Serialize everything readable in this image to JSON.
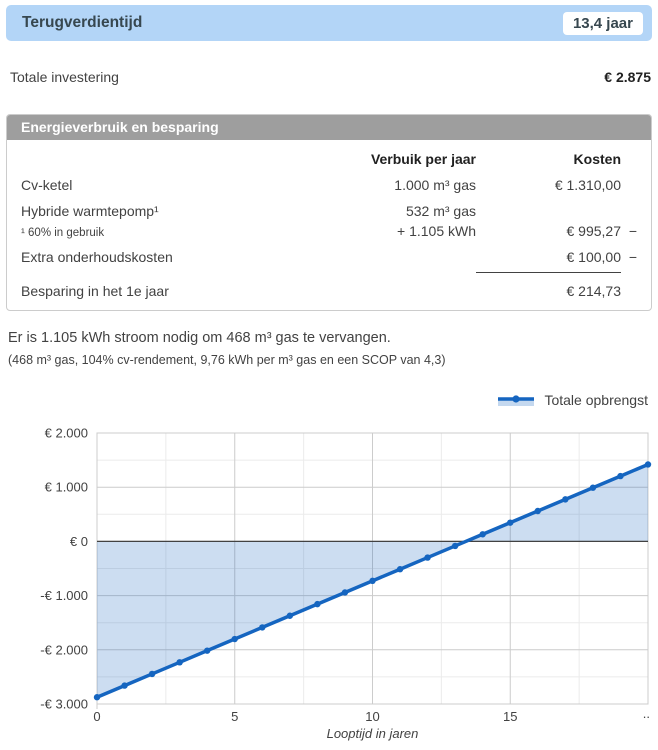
{
  "header": {
    "title": "Terugverdientijd",
    "badge": "13,4 jaar"
  },
  "investment": {
    "label": "Totale investering",
    "value": "€ 2.875"
  },
  "energy_table": {
    "title": "Energieverbruik en besparing",
    "col_usage": "Verbuik per jaar",
    "col_cost": "Kosten",
    "cv_ketel": {
      "label": "Cv-ketel",
      "usage": "1.000 m³ gas",
      "cost": "€ 1.310,00",
      "minus": ""
    },
    "warmtepomp": {
      "label": "Hybride warmtepomp¹",
      "usage": "532 m³ gas"
    },
    "warmtepomp_sub": {
      "label": "¹ 60% in gebruik",
      "usage": "+ 1.105 kWh",
      "cost": "€ 995,27",
      "minus": "−"
    },
    "onderhoud": {
      "label": "Extra onderhoudskosten",
      "cost": "€ 100,00",
      "minus": "−"
    },
    "besparing": {
      "label": "Besparing in het 1e jaar",
      "cost": "€ 214,73"
    }
  },
  "notes": {
    "line1": "Er is 1.105 kWh stroom nodig om 468 m³ gas te vervangen.",
    "line2": "(468 m³ gas, 104% cv-rendement, 9,76 kWh per m³ gas en een SCOP van 4,3)"
  },
  "chart_data": {
    "type": "area",
    "xlabel": "Looptijd in jaren",
    "legend": [
      {
        "name": "Totale opbrengst"
      }
    ],
    "legend_position": "top-right",
    "xlim": [
      0,
      20
    ],
    "ylim": [
      -3000,
      2000
    ],
    "grid": true,
    "x_ticks": [
      {
        "v": 0,
        "label": "0"
      },
      {
        "v": 5,
        "label": "5"
      },
      {
        "v": 10,
        "label": "10"
      },
      {
        "v": 15,
        "label": "15"
      },
      {
        "v": 20,
        "label": ".."
      }
    ],
    "y_ticks": [
      {
        "v": 2000,
        "label": "€ 2.000"
      },
      {
        "v": 1000,
        "label": "€ 1.000"
      },
      {
        "v": 0,
        "label": "€ 0"
      },
      {
        "v": -1000,
        "label": "-€ 1.000"
      },
      {
        "v": -2000,
        "label": "-€ 2.000"
      },
      {
        "v": -3000,
        "label": "-€ 3.000"
      }
    ],
    "series": [
      {
        "name": "Totale opbrengst",
        "x": [
          0,
          1,
          2,
          3,
          4,
          5,
          6,
          7,
          8,
          9,
          10,
          11,
          12,
          13,
          14,
          15,
          16,
          17,
          18,
          19,
          20
        ],
        "y": [
          -2875,
          -2660.27,
          -2445.54,
          -2230.81,
          -2016.08,
          -1801.35,
          -1586.62,
          -1371.89,
          -1157.16,
          -942.43,
          -727.7,
          -512.97,
          -298.24,
          -83.51,
          131.22,
          345.95,
          560.68,
          775.41,
          990.14,
          1204.87,
          1419.6
        ]
      }
    ],
    "line_color": "#1565C0",
    "fill_color": "rgba(21,101,192,0.22)",
    "zero_line_color": "#424242",
    "grid_major_color": "#cccccc",
    "grid_minor_color": "#ebebeb"
  },
  "colors": {
    "header_bg": "#B3D5F7",
    "table_header_bg": "#9E9E9E"
  }
}
